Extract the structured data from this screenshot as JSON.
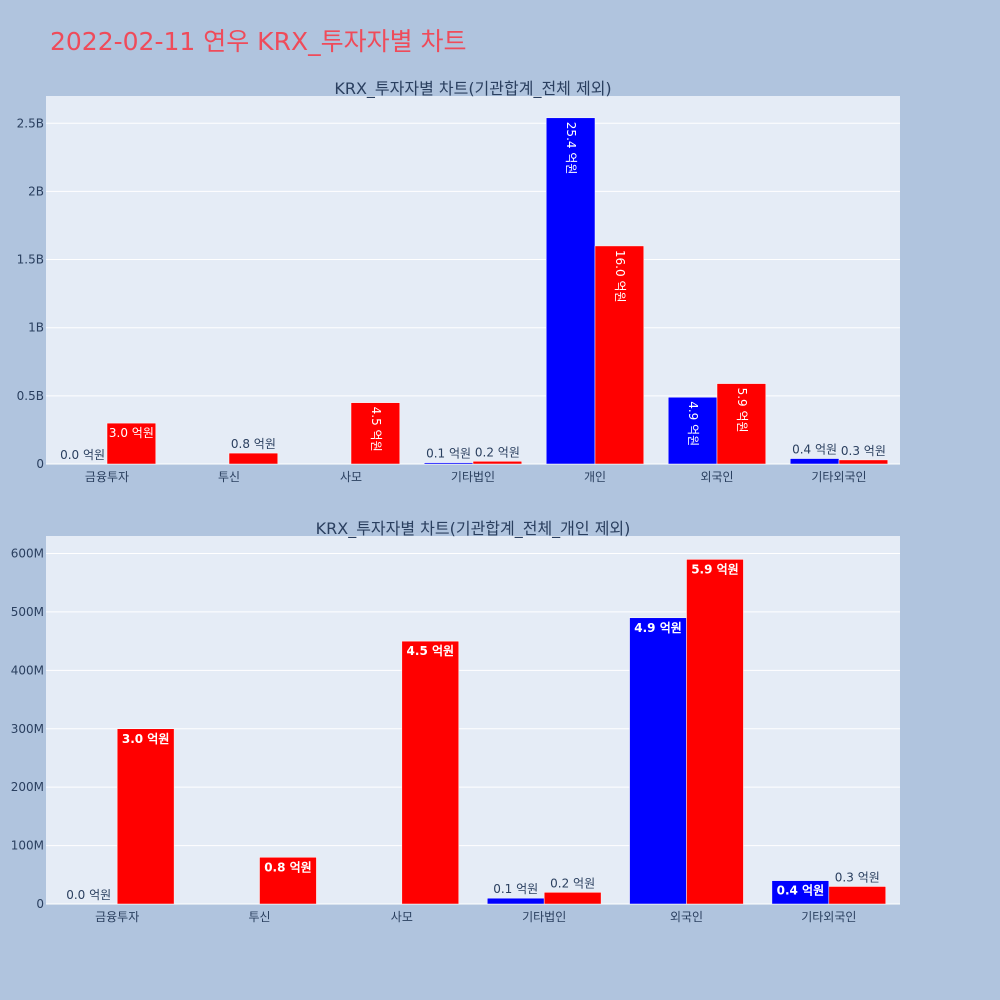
{
  "title": "2022-02-11 연우 KRX_투자자별 차트",
  "colors": {
    "background": "#b0c4de",
    "plot_bg": "#e5ecf6",
    "series_a": "#0000ff",
    "series_b": "#ff0000",
    "title": "#ef4b5a"
  },
  "chart_data": [
    {
      "type": "bar",
      "title": "KRX_투자자별 차트(기관합계_전체 제외)",
      "categories": [
        "금융투자",
        "투신",
        "사모",
        "기타법인",
        "개인",
        "외국인",
        "기타외국인"
      ],
      "ylim": [
        0,
        2700000000
      ],
      "yticks": [
        0,
        500000000,
        1000000000,
        1500000000,
        2000000000,
        2500000000
      ],
      "ytick_labels": [
        "0",
        "0.5B",
        "1B",
        "1.5B",
        "2B",
        "2.5B"
      ],
      "grid": true,
      "legend": "none",
      "label_rotation": "vertical",
      "series": [
        {
          "color": "#0000ff",
          "values": [
            0,
            null,
            null,
            10000000,
            2540000000,
            490000000,
            40000000
          ],
          "labels": [
            "0.0 억원",
            "",
            "",
            "0.1 억원",
            "25.4 억원",
            "4.9 억원",
            "0.4 억원"
          ]
        },
        {
          "color": "#ff0000",
          "values": [
            300000000,
            80000000,
            450000000,
            20000000,
            1600000000,
            590000000,
            30000000
          ],
          "labels": [
            "3.0 억원",
            "0.8 억원",
            "4.5 억원",
            "0.2 억원",
            "16.0 억원",
            "5.9 억원",
            "0.3 억원"
          ]
        }
      ]
    },
    {
      "type": "bar",
      "title": "KRX_투자자별 차트(기관합계_전체_개인 제외)",
      "categories": [
        "금융투자",
        "투신",
        "사모",
        "기타법인",
        "외국인",
        "기타외국인"
      ],
      "ylim": [
        0,
        630000000
      ],
      "yticks": [
        0,
        100000000,
        200000000,
        300000000,
        400000000,
        500000000,
        600000000
      ],
      "ytick_labels": [
        "0",
        "100M",
        "200M",
        "300M",
        "400M",
        "500M",
        "600M"
      ],
      "grid": true,
      "legend": "none",
      "label_rotation": "horizontal",
      "series": [
        {
          "color": "#0000ff",
          "values": [
            0,
            null,
            null,
            10000000,
            490000000,
            40000000
          ],
          "labels": [
            "0.0 억원",
            "",
            "",
            "0.1 억원",
            "4.9 억원",
            "0.4 억원"
          ]
        },
        {
          "color": "#ff0000",
          "values": [
            300000000,
            80000000,
            450000000,
            20000000,
            590000000,
            30000000
          ],
          "labels": [
            "3.0 억원",
            "0.8 억원",
            "4.5 억원",
            "0.2 억원",
            "5.9 억원",
            "0.3 억원"
          ]
        }
      ]
    }
  ]
}
